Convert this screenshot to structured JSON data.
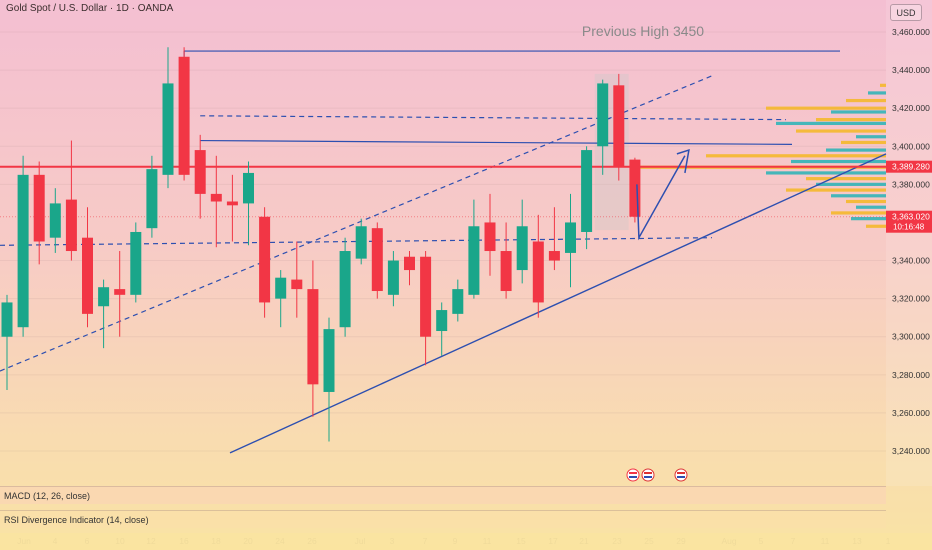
{
  "header": {
    "title": "Gold Spot / U.S. Dollar · 1D · OANDA",
    "currency_label": "USD"
  },
  "colors": {
    "bull": "#1aa68a",
    "bear": "#f23645",
    "trendline": "#2d4fb0",
    "resistance": "#f23645",
    "annotation_text": "#8a8a8a",
    "volume_profile_main": "#f5b722",
    "volume_profile_alt": "#26b3b6"
  },
  "indicators": {
    "macd_label": "MACD (12, 26, close)",
    "rsi_label": "RSI Divergence Indicator (14, close)"
  },
  "chart_data": {
    "type": "candlestick",
    "ylim": [
      3230,
      3470
    ],
    "yticks": [
      "3,460.000",
      "3,440.000",
      "3,420.000",
      "3,400.000",
      "3,380.000",
      "3,340.000",
      "3,320.000",
      "3,300.000",
      "3,280.000",
      "3,260.000",
      "3,240.000"
    ],
    "ytick_values": [
      3460,
      3440,
      3420,
      3400,
      3380,
      3340,
      3320,
      3300,
      3280,
      3260,
      3240
    ],
    "xtick_labels": [
      "Jun",
      "4",
      "6",
      "10",
      "12",
      "16",
      "18",
      "20",
      "24",
      "26",
      "Jul",
      "3",
      "7",
      "9",
      "11",
      "15",
      "17",
      "21",
      "23",
      "25",
      "29",
      "Aug",
      "5",
      "7",
      "11",
      "13",
      "1"
    ],
    "price_labels": [
      {
        "text": "3,389.280",
        "value": 3389.28,
        "color": "#f23645"
      },
      {
        "text": "3,363.020",
        "value": 3363.02,
        "color": "#f23645",
        "sub": "10:16:48"
      }
    ],
    "annotations": [
      {
        "text": "Previous High 3450"
      }
    ],
    "candles": [
      {
        "o": 3300,
        "h": 3322,
        "l": 3272,
        "c": 3318
      },
      {
        "o": 3305,
        "h": 3395,
        "l": 3300,
        "c": 3385
      },
      {
        "o": 3385,
        "h": 3392,
        "l": 3338,
        "c": 3350
      },
      {
        "o": 3352,
        "h": 3378,
        "l": 3344,
        "c": 3370
      },
      {
        "o": 3372,
        "h": 3403,
        "l": 3340,
        "c": 3345
      },
      {
        "o": 3352,
        "h": 3368,
        "l": 3305,
        "c": 3312
      },
      {
        "o": 3316,
        "h": 3330,
        "l": 3294,
        "c": 3326
      },
      {
        "o": 3325,
        "h": 3345,
        "l": 3300,
        "c": 3322
      },
      {
        "o": 3322,
        "h": 3360,
        "l": 3318,
        "c": 3355
      },
      {
        "o": 3357,
        "h": 3395,
        "l": 3352,
        "c": 3388
      },
      {
        "o": 3385,
        "h": 3452,
        "l": 3378,
        "c": 3433
      },
      {
        "o": 3447,
        "h": 3452,
        "l": 3382,
        "c": 3385
      },
      {
        "o": 3398,
        "h": 3406,
        "l": 3362,
        "c": 3375
      },
      {
        "o": 3375,
        "h": 3395,
        "l": 3347,
        "c": 3371
      },
      {
        "o": 3371,
        "h": 3385,
        "l": 3350,
        "c": 3369
      },
      {
        "o": 3370,
        "h": 3392,
        "l": 3348,
        "c": 3386
      },
      {
        "o": 3363,
        "h": 3368,
        "l": 3310,
        "c": 3318
      },
      {
        "o": 3320,
        "h": 3335,
        "l": 3305,
        "c": 3331
      },
      {
        "o": 3330,
        "h": 3350,
        "l": 3310,
        "c": 3325
      },
      {
        "o": 3325,
        "h": 3340,
        "l": 3258,
        "c": 3275
      },
      {
        "o": 3271,
        "h": 3310,
        "l": 3245,
        "c": 3304
      },
      {
        "o": 3305,
        "h": 3352,
        "l": 3300,
        "c": 3345
      },
      {
        "o": 3341,
        "h": 3362,
        "l": 3338,
        "c": 3358
      },
      {
        "o": 3357,
        "h": 3360,
        "l": 3320,
        "c": 3324
      },
      {
        "o": 3322,
        "h": 3345,
        "l": 3316,
        "c": 3340
      },
      {
        "o": 3342,
        "h": 3345,
        "l": 3327,
        "c": 3335
      },
      {
        "o": 3342,
        "h": 3345,
        "l": 3285,
        "c": 3300
      },
      {
        "o": 3303,
        "h": 3318,
        "l": 3290,
        "c": 3314
      },
      {
        "o": 3312,
        "h": 3330,
        "l": 3308,
        "c": 3325
      },
      {
        "o": 3322,
        "h": 3372,
        "l": 3320,
        "c": 3358
      },
      {
        "o": 3360,
        "h": 3375,
        "l": 3332,
        "c": 3345
      },
      {
        "o": 3345,
        "h": 3360,
        "l": 3320,
        "c": 3324
      },
      {
        "o": 3335,
        "h": 3372,
        "l": 3328,
        "c": 3358
      },
      {
        "o": 3350,
        "h": 3364,
        "l": 3310,
        "c": 3318
      },
      {
        "o": 3345,
        "h": 3368,
        "l": 3335,
        "c": 3340
      },
      {
        "o": 3344,
        "h": 3375,
        "l": 3326,
        "c": 3360
      },
      {
        "o": 3355,
        "h": 3400,
        "l": 3346,
        "c": 3398
      },
      {
        "o": 3400,
        "h": 3435,
        "l": 3385,
        "c": 3433
      },
      {
        "o": 3432,
        "h": 3438,
        "l": 3382,
        "c": 3389
      },
      {
        "o": 3393,
        "h": 3394,
        "l": 3360,
        "c": 3363
      }
    ]
  }
}
